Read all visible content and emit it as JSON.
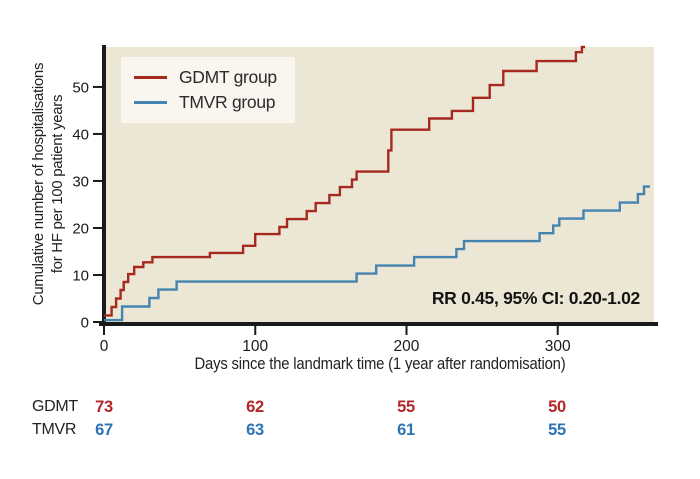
{
  "figure": {
    "y_axis_label_line1": "Cumulative number of hospitalisations",
    "y_axis_label_line2": "for HF per 100 patient years"
  },
  "legend": {
    "items": [
      {
        "label": "GDMT group",
        "color": "#a5291f"
      },
      {
        "label": "TMVR group",
        "color": "#4583b0"
      }
    ]
  },
  "chart_data": {
    "type": "line",
    "subtype": "step",
    "title": "",
    "xlabel": "Days since the landmark time (1 year after randomisation)",
    "ylabel": "Cumulative number of hospitalisations for HF per 100 patient years",
    "xlim": [
      0,
      361
    ],
    "ylim": [
      0,
      58.5
    ],
    "xticks": [
      0,
      100,
      200,
      300
    ],
    "yticks": [
      0,
      10,
      20,
      30,
      40,
      50
    ],
    "grid": false,
    "plot_background": "#ece7d4",
    "axis_color": "#1a1a1a",
    "legend_position": "top-left",
    "annotation": "RR 0.45, 95% CI: 0.20-1.02",
    "series": [
      {
        "name": "GDMT group",
        "color": "#a5291f",
        "end_x": 318,
        "points": [
          [
            0,
            1.4
          ],
          [
            5,
            3.2
          ],
          [
            8,
            5.0
          ],
          [
            11,
            6.8
          ],
          [
            13,
            8.5
          ],
          [
            16,
            10.2
          ],
          [
            20,
            11.7
          ],
          [
            26,
            12.7
          ],
          [
            32,
            13.8
          ],
          [
            70,
            14.7
          ],
          [
            92,
            16.2
          ],
          [
            100,
            18.7
          ],
          [
            116,
            20.2
          ],
          [
            121,
            21.9
          ],
          [
            134,
            23.6
          ],
          [
            140,
            25.3
          ],
          [
            149,
            27.0
          ],
          [
            156,
            28.7
          ],
          [
            164,
            30.3
          ],
          [
            167,
            32.0
          ],
          [
            188,
            36.5
          ],
          [
            190,
            40.9
          ],
          [
            215,
            43.3
          ],
          [
            230,
            44.9
          ],
          [
            244,
            47.7
          ],
          [
            255,
            50.4
          ],
          [
            264,
            53.4
          ],
          [
            286,
            55.5
          ],
          [
            312,
            57.4
          ],
          [
            316,
            58.5
          ]
        ]
      },
      {
        "name": "TMVR group",
        "color": "#4583b0",
        "end_x": 361,
        "points": [
          [
            0,
            0.4
          ],
          [
            12,
            3.3
          ],
          [
            30,
            5.1
          ],
          [
            36,
            6.9
          ],
          [
            48,
            8.6
          ],
          [
            167,
            10.3
          ],
          [
            180,
            12.0
          ],
          [
            205,
            13.8
          ],
          [
            233,
            15.5
          ],
          [
            238,
            17.2
          ],
          [
            288,
            18.9
          ],
          [
            297,
            20.5
          ],
          [
            301,
            22.0
          ],
          [
            317,
            23.7
          ],
          [
            341,
            25.4
          ],
          [
            353,
            27.2
          ],
          [
            357,
            28.8
          ]
        ]
      }
    ]
  },
  "risk_table": {
    "time_points": [
      0,
      100,
      200,
      300
    ],
    "rows": [
      {
        "label": "GDMT",
        "color": "#b32629",
        "values": [
          "73",
          "62",
          "55",
          "50"
        ]
      },
      {
        "label": "TMVR",
        "color": "#2d74b5",
        "values": [
          "67",
          "63",
          "61",
          "55"
        ]
      }
    ]
  }
}
